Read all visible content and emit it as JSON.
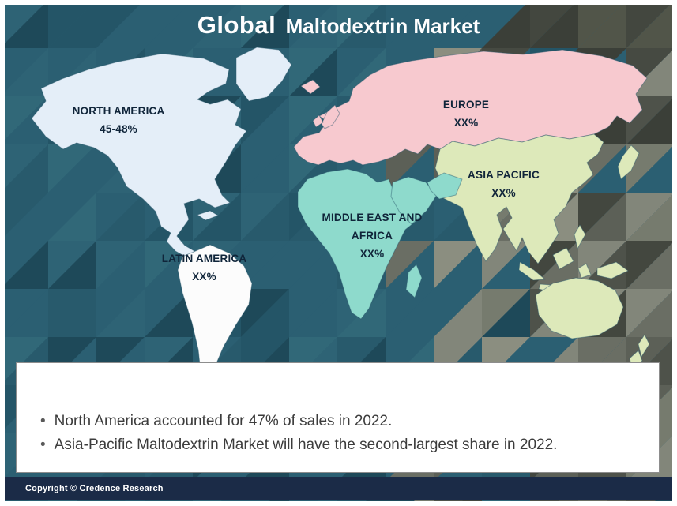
{
  "title": {
    "global": "Global",
    "rest": "Maltodextrin Market"
  },
  "regions": [
    {
      "id": "north-america",
      "line1": "NORTH AMERICA",
      "share": "45-48%",
      "color": "#e4eef8"
    },
    {
      "id": "europe",
      "line1": "EUROPE",
      "share": "XX%",
      "color": "#f7c9cf"
    },
    {
      "id": "asia-pacific",
      "line1": "ASIA PACIFIC",
      "share": "XX%",
      "color": "#dde9ba"
    },
    {
      "id": "middle-east-africa",
      "line1": "MIDDLE EAST AND",
      "line2": "AFRICA",
      "share": "XX%",
      "color": "#8edacc"
    },
    {
      "id": "latin-america",
      "line1": "LATIN AMERICA",
      "share": "XX%",
      "color": "#fcfcfc"
    }
  ],
  "panel": {
    "bullet": "•",
    "items": [
      "North America accounted for 47% of sales in 2022.",
      "Asia-Pacific Maltodextrin Market will have the second-largest share in 2022."
    ]
  },
  "footer": {
    "copyright": "Copyright © Credence Research"
  },
  "colors": {
    "background": "#2b5f72",
    "footer_bar": "#1b2b47",
    "panel_border": "#8d8d8d",
    "label_text": "#10253a",
    "title_text": "#ffffff"
  },
  "chart_data": {
    "type": "map",
    "title": "Global Maltodextrin Market",
    "regions": [
      {
        "name": "North America",
        "share": "45-48%"
      },
      {
        "name": "Europe",
        "share": "XX%"
      },
      {
        "name": "Asia Pacific",
        "share": "XX%"
      },
      {
        "name": "Middle East and Africa",
        "share": "XX%"
      },
      {
        "name": "Latin America",
        "share": "XX%"
      }
    ],
    "notes": [
      "North America accounted for 47% of sales in 2022.",
      "Asia-Pacific Maltodextrin Market will have the second-largest share in 2022."
    ]
  }
}
